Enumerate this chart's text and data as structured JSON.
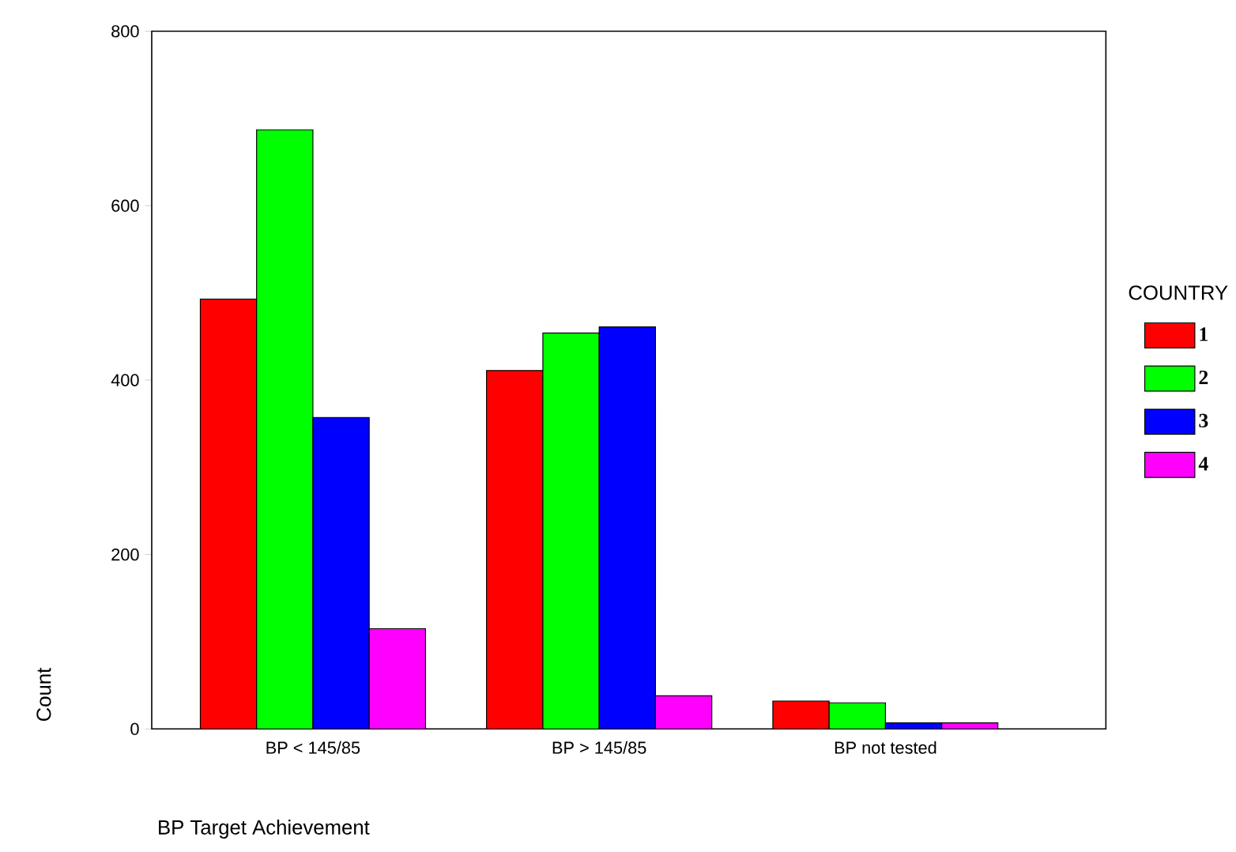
{
  "chart_data": {
    "type": "bar",
    "xlabel": "BP Target Achievement",
    "ylabel": "Count",
    "legend_title": "COUNTRY",
    "categories": [
      "BP < 145/85",
      "BP > 145/85",
      "BP not tested"
    ],
    "series": [
      {
        "name": "1",
        "color": "#ff0000",
        "values": [
          493,
          411,
          32
        ]
      },
      {
        "name": "2",
        "color": "#00ff00",
        "values": [
          687,
          454,
          30
        ]
      },
      {
        "name": "3",
        "color": "#0000ff",
        "values": [
          357,
          461,
          7
        ]
      },
      {
        "name": "4",
        "color": "#ff00ff",
        "values": [
          115,
          38,
          7
        ]
      }
    ],
    "ylim": [
      0,
      800
    ],
    "yticks": [
      0,
      200,
      400,
      600,
      800
    ],
    "grid": false,
    "legend": "right"
  }
}
